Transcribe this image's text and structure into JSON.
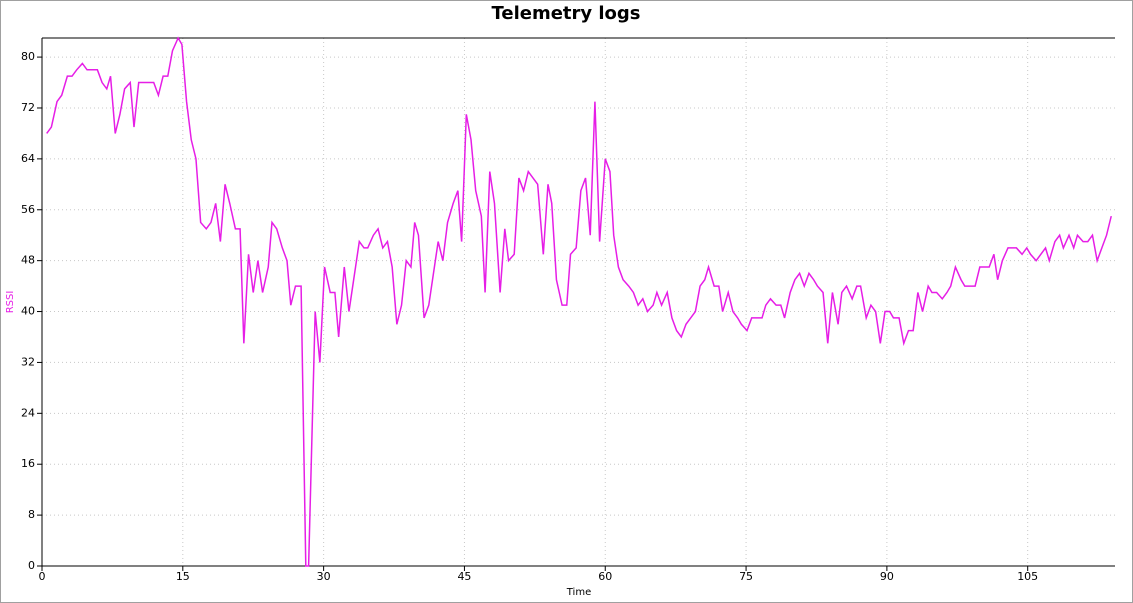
{
  "chart_data": {
    "type": "line",
    "title": "Telemetry logs",
    "xlabel": "Time",
    "ylabel": "RSSI",
    "xlim": [
      0,
      114.3
    ],
    "ylim": [
      0,
      83
    ],
    "xticks": [
      0,
      15,
      30,
      45,
      60,
      75,
      90,
      105
    ],
    "yticks": [
      0,
      8,
      16,
      24,
      32,
      40,
      48,
      56,
      64,
      72,
      80
    ],
    "grid": true,
    "series": [
      {
        "name": "RSSI",
        "color": "#e61ee6",
        "x": [
          0.5,
          1,
          1.6,
          2.1,
          2.7,
          3.2,
          3.7,
          4.3,
          4.8,
          5.3,
          5.9,
          6.4,
          6.9,
          7.3,
          7.8,
          8.3,
          8.8,
          9.4,
          9.8,
          10.3,
          10.9,
          11.4,
          11.9,
          12.4,
          12.9,
          13.4,
          13.9,
          14.5,
          14.9,
          15.4,
          15.9,
          16.4,
          16.9,
          17.5,
          18,
          18.5,
          19,
          19.5,
          20,
          20.6,
          21.1,
          21.5,
          22,
          22.5,
          23,
          23.5,
          24.1,
          24.5,
          25,
          25.6,
          26.1,
          26.5,
          27,
          27.6,
          28.1,
          28.4,
          29.1,
          29.6,
          30.1,
          30.7,
          31.2,
          31.6,
          32.2,
          32.7,
          33.2,
          33.8,
          34.3,
          34.7,
          35.3,
          35.8,
          36.3,
          36.8,
          37.3,
          37.8,
          38.3,
          38.8,
          39.3,
          39.7,
          40.1,
          40.7,
          41.2,
          41.7,
          42.2,
          42.7,
          43.2,
          43.8,
          44.3,
          44.7,
          45.2,
          45.7,
          46.2,
          46.8,
          47.2,
          47.7,
          48.2,
          48.8,
          49.3,
          49.7,
          50.3,
          50.8,
          51.3,
          51.8,
          52.3,
          52.8,
          53.4,
          53.9,
          54.3,
          54.8,
          55.4,
          55.9,
          56.3,
          56.9,
          57.4,
          57.9,
          58.4,
          58.9,
          59.4,
          60,
          60.5,
          60.9,
          61.4,
          61.9,
          62.5,
          63,
          63.5,
          64,
          64.5,
          65.1,
          65.5,
          66,
          66.6,
          67.1,
          67.6,
          68.1,
          68.6,
          69.1,
          69.6,
          70.1,
          70.6,
          71,
          71.6,
          72.1,
          72.5,
          73.1,
          73.6,
          74.1,
          74.5,
          75.1,
          75.6,
          76.1,
          76.7,
          77.1,
          77.6,
          78.2,
          78.7,
          79.1,
          79.7,
          80.2,
          80.7,
          81.2,
          81.7,
          82.2,
          82.6,
          83.2,
          83.7,
          84.2,
          84.8,
          85.2,
          85.7,
          86.3,
          86.8,
          87.2,
          87.8,
          88.3,
          88.8,
          89.3,
          89.8,
          90.3,
          90.7,
          91.3,
          91.8,
          92.3,
          92.8,
          93.3,
          93.8,
          94.4,
          94.8,
          95.3,
          95.9,
          96.4,
          96.8,
          97.3,
          97.9,
          98.3,
          98.8,
          99.4,
          99.9,
          100.3,
          100.9,
          101.4,
          101.8,
          102.3,
          102.9,
          103.4,
          103.8,
          104.4,
          104.9,
          105.3,
          105.9,
          106.4,
          106.9,
          107.3,
          107.9,
          108.4,
          108.8,
          109.4,
          109.9,
          110.3,
          110.9,
          111.4,
          111.9,
          112.4,
          112.9,
          113.4,
          113.9
        ],
        "values": [
          68,
          69,
          73,
          74,
          77,
          77,
          78,
          79,
          78,
          78,
          78,
          76,
          75,
          77,
          68,
          71,
          75,
          76,
          69,
          76,
          76,
          76,
          76,
          74,
          77,
          77,
          81,
          83,
          82,
          73,
          67,
          64,
          54,
          53,
          54,
          57,
          51,
          60,
          57,
          53,
          53,
          35,
          49,
          43,
          48,
          43,
          47,
          54,
          53,
          50,
          48,
          41,
          44,
          44,
          0,
          0,
          40,
          32,
          47,
          43,
          43,
          36,
          47,
          40,
          45,
          51,
          50,
          50,
          52,
          53,
          50,
          51,
          47,
          38,
          41,
          48,
          47,
          54,
          52,
          39,
          41,
          46,
          51,
          48,
          54,
          57,
          59,
          51,
          71,
          67,
          59,
          55,
          43,
          62,
          57,
          43,
          53,
          48,
          49,
          61,
          59,
          62,
          61,
          60,
          49,
          60,
          57,
          45,
          41,
          41,
          49,
          50,
          59,
          61,
          52,
          73,
          51,
          64,
          62,
          52,
          47,
          45,
          44,
          43,
          41,
          42,
          40,
          41,
          43,
          41,
          43,
          39,
          37,
          36,
          38,
          39,
          40,
          44,
          45,
          47,
          44,
          44,
          40,
          43,
          40,
          39,
          38,
          37,
          39,
          39,
          39,
          41,
          42,
          41,
          41,
          39,
          43,
          45,
          46,
          44,
          46,
          45,
          44,
          43,
          35,
          43,
          38,
          43,
          44,
          42,
          44,
          44,
          39,
          41,
          40,
          35,
          40,
          40,
          39,
          39,
          35,
          37,
          37,
          43,
          40,
          44,
          43,
          43,
          42,
          43,
          44,
          47,
          45,
          44,
          44,
          44,
          47,
          47,
          47,
          49,
          45,
          48,
          50,
          50,
          50,
          49,
          50,
          49,
          48,
          49,
          50,
          48,
          51,
          52,
          50,
          52,
          50,
          52,
          51,
          51,
          52,
          48,
          50,
          52,
          55
        ]
      }
    ]
  }
}
